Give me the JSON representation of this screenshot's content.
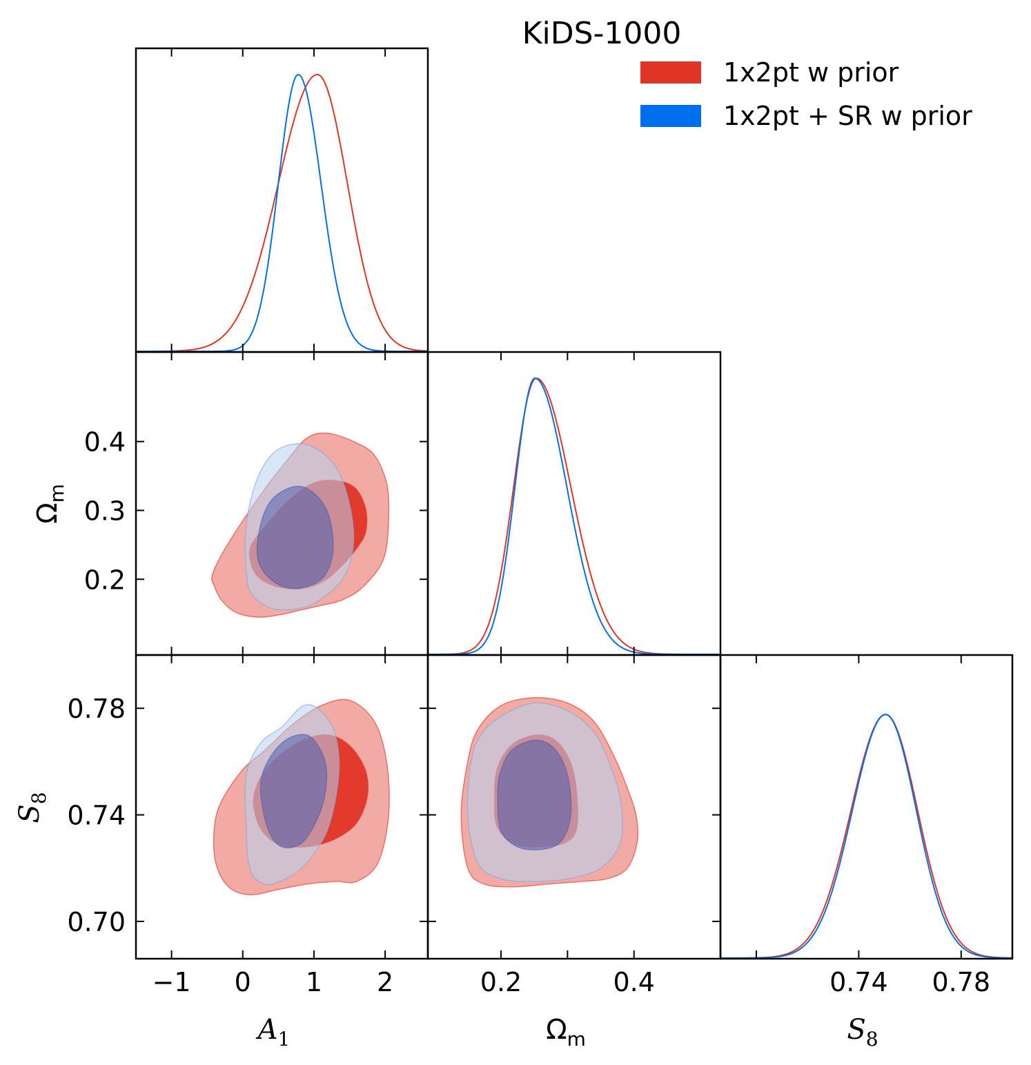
{
  "chart_data": {
    "type": "corner",
    "title": "KiDS-1000",
    "parameters": [
      "A1",
      "Omega_m",
      "S8"
    ],
    "legend": [
      {
        "label": "1x2pt w prior",
        "color": "#e03426"
      },
      {
        "label": "1x2pt + SR w prior",
        "color": "#006fed"
      }
    ],
    "axes": {
      "A1": {
        "label": "A",
        "sub": "1",
        "range": [
          -1.5,
          2.6
        ],
        "ticks": [
          -1,
          0,
          1,
          2
        ],
        "tick_labels": [
          "−1",
          "0",
          "1",
          "2"
        ]
      },
      "Omega_m": {
        "label": "Ω",
        "sub": "m",
        "range": [
          0.09,
          0.53
        ],
        "ticks": [
          0.2,
          0.3,
          0.4
        ],
        "x_tick_labels": [
          "0.2",
          "",
          "0.4"
        ],
        "y_tick_labels": [
          "0.2",
          "0.3",
          "0.4"
        ]
      },
      "S8": {
        "label": "S",
        "sub": "8",
        "range": [
          0.686,
          0.8
        ],
        "ticks": [
          0.7,
          0.74,
          0.78
        ],
        "x_tick_labels": [
          "",
          "0.74",
          "0.78"
        ],
        "y_tick_labels": [
          "0.70",
          "0.74",
          "0.78"
        ]
      }
    },
    "marginals": {
      "A1": [
        {
          "series": "1x2pt w prior",
          "mean": 1.05,
          "sigma_left": 0.55,
          "sigma_right": 0.42,
          "peak": 1.0
        },
        {
          "series": "1x2pt + SR w prior",
          "mean": 0.78,
          "sigma_left": 0.28,
          "sigma_right": 0.32,
          "peak": 1.0
        }
      ],
      "Omega_m": [
        {
          "series": "1x2pt w prior",
          "mean": 0.253,
          "sigma_left": 0.034,
          "sigma_right": 0.052,
          "peak": 1.0
        },
        {
          "series": "1x2pt + SR w prior",
          "mean": 0.251,
          "sigma_left": 0.03,
          "sigma_right": 0.048,
          "peak": 1.0
        }
      ],
      "S8": [
        {
          "series": "1x2pt w prior",
          "mean": 0.7505,
          "sigma_left": 0.0135,
          "sigma_right": 0.0125,
          "peak": 0.88
        },
        {
          "series": "1x2pt + SR w prior",
          "mean": 0.7505,
          "sigma_left": 0.013,
          "sigma_right": 0.012,
          "peak": 0.88
        }
      ]
    },
    "contours": {
      "Omega_m_vs_A1": {
        "1x2pt w prior": {
          "outer_95": [
            [
              -0.4,
              0.19
            ],
            [
              -0.3,
              0.17
            ],
            [
              -0.1,
              0.152
            ],
            [
              0.2,
              0.145
            ],
            [
              0.5,
              0.148
            ],
            [
              0.8,
              0.155
            ],
            [
              1.1,
              0.162
            ],
            [
              1.4,
              0.17
            ],
            [
              1.7,
              0.19
            ],
            [
              1.98,
              0.23
            ],
            [
              2.05,
              0.29
            ],
            [
              2.02,
              0.34
            ],
            [
              1.85,
              0.38
            ],
            [
              1.6,
              0.398
            ],
            [
              1.2,
              0.412
            ],
            [
              0.9,
              0.405
            ],
            [
              0.6,
              0.37
            ],
            [
              0.3,
              0.33
            ],
            [
              0.0,
              0.285
            ],
            [
              -0.3,
              0.235
            ],
            [
              -0.43,
              0.205
            ]
          ],
          "inner_68": [
            [
              0.1,
              0.23
            ],
            [
              0.2,
              0.205
            ],
            [
              0.45,
              0.19
            ],
            [
              0.8,
              0.186
            ],
            [
              1.1,
              0.195
            ],
            [
              1.35,
              0.215
            ],
            [
              1.6,
              0.245
            ],
            [
              1.73,
              0.27
            ],
            [
              1.72,
              0.305
            ],
            [
              1.55,
              0.335
            ],
            [
              1.2,
              0.344
            ],
            [
              0.9,
              0.335
            ],
            [
              0.6,
              0.31
            ],
            [
              0.3,
              0.275
            ],
            [
              0.12,
              0.25
            ]
          ]
        },
        "1x2pt + SR w prior": {
          "outer_95": [
            [
              0.05,
              0.28
            ],
            [
              0.05,
              0.21
            ],
            [
              0.13,
              0.178
            ],
            [
              0.4,
              0.158
            ],
            [
              0.75,
              0.157
            ],
            [
              1.05,
              0.168
            ],
            [
              1.4,
              0.2
            ],
            [
              1.55,
              0.245
            ],
            [
              1.52,
              0.3
            ],
            [
              1.35,
              0.355
            ],
            [
              1.1,
              0.385
            ],
            [
              0.8,
              0.397
            ],
            [
              0.45,
              0.385
            ],
            [
              0.2,
              0.345
            ]
          ],
          "inner_68": [
            [
              0.2,
              0.24
            ],
            [
              0.3,
              0.21
            ],
            [
              0.55,
              0.19
            ],
            [
              0.85,
              0.188
            ],
            [
              1.15,
              0.205
            ],
            [
              1.27,
              0.245
            ],
            [
              1.2,
              0.295
            ],
            [
              1.0,
              0.325
            ],
            [
              0.75,
              0.335
            ],
            [
              0.45,
              0.32
            ],
            [
              0.28,
              0.29
            ]
          ]
        }
      },
      "S8_vs_A1": {
        "1x2pt w prior": {
          "outer_95": [
            [
              -0.4,
              0.735
            ],
            [
              -0.38,
              0.722
            ],
            [
              -0.2,
              0.713
            ],
            [
              0.1,
              0.71
            ],
            [
              0.5,
              0.712
            ],
            [
              0.9,
              0.714
            ],
            [
              1.3,
              0.715
            ],
            [
              1.6,
              0.715
            ],
            [
              1.9,
              0.722
            ],
            [
              2.05,
              0.74
            ],
            [
              2.02,
              0.76
            ],
            [
              1.85,
              0.775
            ],
            [
              1.5,
              0.783
            ],
            [
              1.1,
              0.781
            ],
            [
              0.7,
              0.774
            ],
            [
              0.3,
              0.764
            ],
            [
              0.0,
              0.757
            ],
            [
              -0.3,
              0.745
            ]
          ],
          "inner_68": [
            [
              0.15,
              0.745
            ],
            [
              0.25,
              0.735
            ],
            [
              0.5,
              0.729
            ],
            [
              0.9,
              0.728
            ],
            [
              1.3,
              0.731
            ],
            [
              1.6,
              0.737
            ],
            [
              1.75,
              0.747
            ],
            [
              1.72,
              0.757
            ],
            [
              1.5,
              0.766
            ],
            [
              1.2,
              0.77
            ],
            [
              0.85,
              0.768
            ],
            [
              0.5,
              0.762
            ],
            [
              0.25,
              0.754
            ]
          ]
        },
        "1x2pt + SR w prior": {
          "outer_95": [
            [
              0.05,
              0.755
            ],
            [
              0.05,
              0.735
            ],
            [
              0.1,
              0.72
            ],
            [
              0.3,
              0.714
            ],
            [
              0.6,
              0.716
            ],
            [
              0.9,
              0.722
            ],
            [
              1.2,
              0.735
            ],
            [
              1.35,
              0.755
            ],
            [
              1.3,
              0.77
            ],
            [
              1.1,
              0.779
            ],
            [
              0.85,
              0.781
            ],
            [
              0.55,
              0.773
            ],
            [
              0.25,
              0.767
            ]
          ],
          "inner_68": [
            [
              0.25,
              0.75
            ],
            [
              0.35,
              0.735
            ],
            [
              0.55,
              0.728
            ],
            [
              0.85,
              0.73
            ],
            [
              1.1,
              0.742
            ],
            [
              1.18,
              0.755
            ],
            [
              1.1,
              0.764
            ],
            [
              0.9,
              0.77
            ],
            [
              0.6,
              0.768
            ],
            [
              0.35,
              0.76
            ]
          ]
        }
      },
      "S8_vs_Omega_m": {
        "1x2pt w prior": {
          "outer_95": [
            [
              0.15,
              0.76
            ],
            [
              0.14,
              0.74
            ],
            [
              0.15,
              0.72
            ],
            [
              0.175,
              0.714
            ],
            [
              0.22,
              0.713
            ],
            [
              0.27,
              0.714
            ],
            [
              0.32,
              0.715
            ],
            [
              0.36,
              0.716
            ],
            [
              0.39,
              0.72
            ],
            [
              0.405,
              0.73
            ],
            [
              0.403,
              0.74
            ],
            [
              0.39,
              0.75
            ],
            [
              0.37,
              0.762
            ],
            [
              0.34,
              0.775
            ],
            [
              0.3,
              0.782
            ],
            [
              0.25,
              0.784
            ],
            [
              0.2,
              0.781
            ],
            [
              0.165,
              0.772
            ]
          ],
          "inner_68": [
            [
              0.19,
              0.745
            ],
            [
              0.195,
              0.735
            ],
            [
              0.22,
              0.729
            ],
            [
              0.26,
              0.728
            ],
            [
              0.3,
              0.73
            ],
            [
              0.315,
              0.737
            ],
            [
              0.31,
              0.755
            ],
            [
              0.29,
              0.766
            ],
            [
              0.26,
              0.77
            ],
            [
              0.22,
              0.767
            ],
            [
              0.195,
              0.758
            ]
          ]
        },
        "1x2pt + SR w prior": {
          "outer_95": [
            [
              0.155,
              0.76
            ],
            [
              0.15,
              0.74
            ],
            [
              0.165,
              0.722
            ],
            [
              0.2,
              0.716
            ],
            [
              0.25,
              0.715
            ],
            [
              0.3,
              0.716
            ],
            [
              0.35,
              0.72
            ],
            [
              0.38,
              0.73
            ],
            [
              0.38,
              0.745
            ],
            [
              0.365,
              0.758
            ],
            [
              0.34,
              0.771
            ],
            [
              0.3,
              0.779
            ],
            [
              0.25,
              0.782
            ],
            [
              0.2,
              0.777
            ],
            [
              0.17,
              0.77
            ]
          ],
          "inner_68": [
            [
              0.195,
              0.745
            ],
            [
              0.2,
              0.734
            ],
            [
              0.225,
              0.728
            ],
            [
              0.26,
              0.727
            ],
            [
              0.29,
              0.73
            ],
            [
              0.305,
              0.74
            ],
            [
              0.3,
              0.755
            ],
            [
              0.28,
              0.765
            ],
            [
              0.25,
              0.768
            ],
            [
              0.215,
              0.764
            ],
            [
              0.198,
              0.755
            ]
          ]
        }
      }
    }
  }
}
